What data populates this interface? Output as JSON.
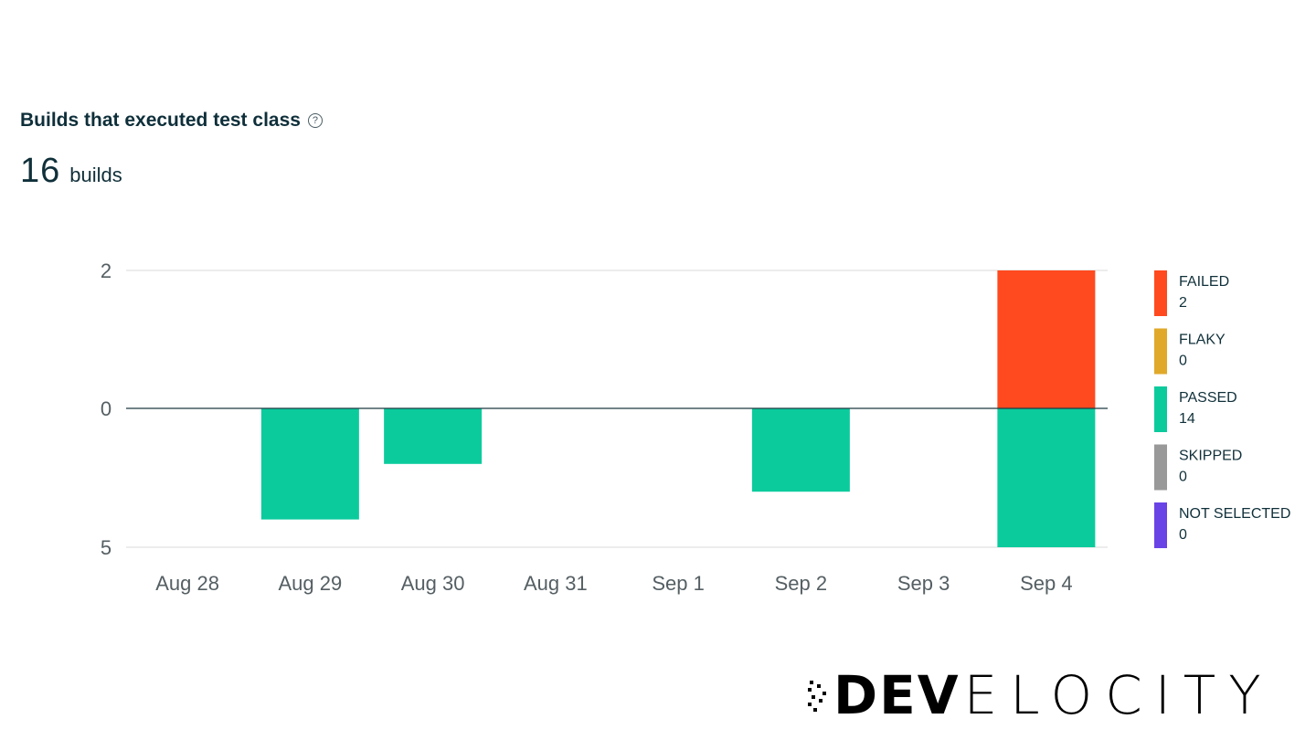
{
  "header": {
    "title": "Builds that executed test class",
    "help_icon": "question-circle-icon",
    "help_glyph": "?",
    "total_count": "16",
    "total_unit": "builds"
  },
  "chart_data": {
    "type": "bar",
    "categories": [
      "Aug 28",
      "Aug 29",
      "Aug 30",
      "Aug 31",
      "Sep 1",
      "Sep 2",
      "Sep 3",
      "Sep 4"
    ],
    "y_ticks_above": [
      2,
      0
    ],
    "y_ticks_below": [
      0,
      5
    ],
    "ylim_above": [
      0,
      2
    ],
    "ylim_below": [
      0,
      5
    ],
    "series": [
      {
        "name": "FAILED",
        "color": "#ff4a1f",
        "direction": "up",
        "values": [
          0,
          0,
          0,
          0,
          0,
          0,
          0,
          2
        ]
      },
      {
        "name": "FLAKY",
        "color": "#e0a92a",
        "direction": "up",
        "values": [
          0,
          0,
          0,
          0,
          0,
          0,
          0,
          0
        ]
      },
      {
        "name": "PASSED",
        "color": "#0bcb9d",
        "direction": "down",
        "values": [
          0,
          4,
          2,
          0,
          0,
          3,
          0,
          5
        ]
      },
      {
        "name": "SKIPPED",
        "color": "#999999",
        "direction": "down",
        "values": [
          0,
          0,
          0,
          0,
          0,
          0,
          0,
          0
        ]
      },
      {
        "name": "NOT SELECTED",
        "color": "#6a43e6",
        "direction": "down",
        "values": [
          0,
          0,
          0,
          0,
          0,
          0,
          0,
          0
        ]
      }
    ],
    "legend": {
      "placement": "right",
      "items": [
        {
          "label": "FAILED",
          "count": "2",
          "color": "#ff4a1f"
        },
        {
          "label": "FLAKY",
          "count": "0",
          "color": "#e0a92a"
        },
        {
          "label": "PASSED",
          "count": "14",
          "color": "#0bcb9d"
        },
        {
          "label": "SKIPPED",
          "count": "0",
          "color": "#999999"
        },
        {
          "label": "NOT SELECTED",
          "count": "0",
          "color": "#6a43e6"
        }
      ]
    },
    "grid": true
  },
  "brand": {
    "logo_icon": "elephant-logo-icon",
    "mark": "DEV",
    "rest": "ELOCITY"
  }
}
